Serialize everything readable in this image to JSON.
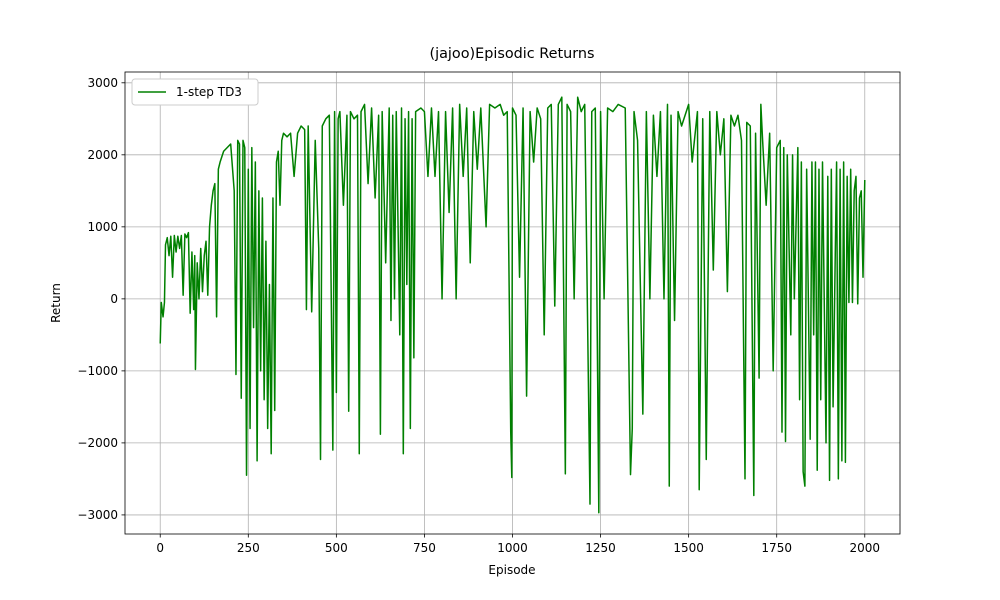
{
  "chart_data": {
    "type": "line",
    "title": "(jajoo)Episodic Returns",
    "xlabel": "Episode",
    "ylabel": "Return",
    "x": [
      0,
      3,
      8,
      12,
      15,
      20,
      25,
      30,
      35,
      40,
      45,
      50,
      55,
      60,
      65,
      70,
      75,
      80,
      85,
      90,
      95,
      98,
      100,
      105,
      110,
      115,
      120,
      125,
      130,
      135,
      140,
      145,
      150,
      155,
      160,
      165,
      170,
      180,
      190,
      200,
      210,
      215,
      220,
      225,
      230,
      235,
      240,
      245,
      250,
      255,
      260,
      265,
      270,
      275,
      280,
      285,
      290,
      295,
      300,
      305,
      310,
      315,
      320,
      325,
      330,
      335,
      340,
      345,
      350,
      360,
      370,
      380,
      390,
      400,
      410,
      415,
      420,
      430,
      440,
      450,
      455,
      460,
      470,
      480,
      490,
      495,
      500,
      505,
      510,
      520,
      530,
      535,
      540,
      550,
      560,
      565,
      570,
      580,
      590,
      600,
      610,
      620,
      625,
      630,
      640,
      650,
      655,
      660,
      665,
      670,
      680,
      685,
      690,
      695,
      700,
      705,
      710,
      715,
      720,
      725,
      740,
      750,
      760,
      770,
      780,
      790,
      800,
      810,
      820,
      830,
      840,
      850,
      860,
      870,
      880,
      890,
      900,
      910,
      925,
      935,
      950,
      965,
      975,
      985,
      995,
      998,
      1000,
      1010,
      1020,
      1030,
      1040,
      1050,
      1060,
      1070,
      1080,
      1090,
      1100,
      1110,
      1120,
      1130,
      1140,
      1150,
      1155,
      1165,
      1175,
      1185,
      1195,
      1205,
      1220,
      1225,
      1235,
      1245,
      1250,
      1260,
      1270,
      1285,
      1300,
      1320,
      1335,
      1340,
      1345,
      1355,
      1370,
      1380,
      1390,
      1400,
      1410,
      1420,
      1430,
      1440,
      1445,
      1450,
      1460,
      1470,
      1480,
      1500,
      1510,
      1525,
      1530,
      1540,
      1550,
      1560,
      1570,
      1580,
      1590,
      1600,
      1610,
      1620,
      1630,
      1640,
      1650,
      1660,
      1665,
      1675,
      1685,
      1690,
      1700,
      1705,
      1710,
      1720,
      1730,
      1740,
      1750,
      1760,
      1765,
      1770,
      1775,
      1780,
      1790,
      1795,
      1800,
      1810,
      1815,
      1820,
      1825,
      1830,
      1835,
      1845,
      1850,
      1855,
      1860,
      1865,
      1870,
      1875,
      1880,
      1890,
      1895,
      1900,
      1905,
      1910,
      1920,
      1925,
      1930,
      1935,
      1940,
      1945,
      1950,
      1955,
      1960,
      1965,
      1970,
      1975,
      1980,
      1985,
      1990,
      1995,
      2000
    ],
    "series": [
      {
        "name": "1-step TD3",
        "color": "#008000",
        "values": [
          -620,
          -50,
          -250,
          -50,
          750,
          850,
          600,
          870,
          300,
          880,
          650,
          870,
          700,
          880,
          50,
          900,
          850,
          920,
          -200,
          650,
          -150,
          600,
          -980,
          500,
          0,
          700,
          100,
          600,
          800,
          50,
          1000,
          1300,
          1500,
          1600,
          -250,
          1800,
          1900,
          2050,
          2100,
          2150,
          1500,
          -1050,
          2200,
          2150,
          -1380,
          2200,
          2100,
          -2450,
          1800,
          -1800,
          2100,
          -400,
          1900,
          -2250,
          1500,
          -1000,
          1400,
          -1400,
          800,
          -1800,
          200,
          -2150,
          1400,
          -1550,
          1900,
          2050,
          1300,
          2200,
          2300,
          2250,
          2300,
          1700,
          2300,
          2400,
          2350,
          -150,
          2400,
          -180,
          2200,
          700,
          -2230,
          2400,
          2500,
          2550,
          -2100,
          2600,
          -1300,
          2500,
          2600,
          1300,
          2550,
          -1560,
          2600,
          2500,
          2550,
          -2150,
          2600,
          2700,
          1600,
          2650,
          1400,
          2550,
          -1880,
          2600,
          500,
          2650,
          -300,
          2550,
          0,
          2600,
          -500,
          2650,
          -2150,
          2500,
          200,
          2600,
          -1800,
          2500,
          -820,
          2600,
          2650,
          2600,
          1700,
          2650,
          1700,
          2600,
          0,
          2600,
          1200,
          2650,
          0,
          2700,
          1700,
          2650,
          500,
          2600,
          1800,
          2650,
          1000,
          2700,
          2650,
          2700,
          2550,
          2600,
          -1850,
          -2480,
          2650,
          2550,
          300,
          2650,
          -1350,
          2600,
          1900,
          2650,
          2500,
          -500,
          2650,
          2700,
          -100,
          2700,
          2800,
          -2430,
          2700,
          2600,
          0,
          2800,
          2600,
          2700,
          -2850,
          2600,
          2650,
          -2970,
          2600,
          0,
          2650,
          2600,
          2700,
          2650,
          -2440,
          -1800,
          2600,
          2200,
          -1600,
          2600,
          0,
          2550,
          1700,
          2600,
          0,
          2700,
          -2600,
          2550,
          -300,
          2600,
          2400,
          2700,
          1900,
          2600,
          -2650,
          2500,
          -2230,
          2600,
          400,
          2600,
          2000,
          2500,
          100,
          2550,
          2400,
          2550,
          2200,
          -2500,
          2450,
          2400,
          -2730,
          2300,
          -1100,
          2700,
          2200,
          1300,
          2300,
          -1000,
          2100,
          2200,
          -1850,
          2100,
          -1980,
          2000,
          -500,
          2000,
          0,
          2100,
          -1400,
          1900,
          -2400,
          -2600,
          1800,
          -1950,
          1900,
          -500,
          1900,
          -2380,
          1800,
          -1400,
          1900,
          -2000,
          1700,
          -2520,
          1800,
          -1500,
          1900,
          -2500,
          1800,
          -2250,
          1900,
          -2270,
          1700,
          -50,
          1800,
          -50,
          1500,
          1700,
          -70,
          1400,
          1500,
          300,
          1650
        ]
      }
    ],
    "xlim": [
      -100,
      2100
    ],
    "ylim": [
      -3265,
      3150
    ],
    "xticks": [
      0,
      250,
      500,
      750,
      1000,
      1250,
      1500,
      1750,
      2000
    ],
    "yticks": [
      {
        "value": -3000,
        "label": "−3000"
      },
      {
        "value": -2000,
        "label": "−2000"
      },
      {
        "value": -1000,
        "label": "−1000"
      },
      0,
      1000,
      2000,
      3000
    ],
    "grid": true,
    "legend": "upper left"
  }
}
